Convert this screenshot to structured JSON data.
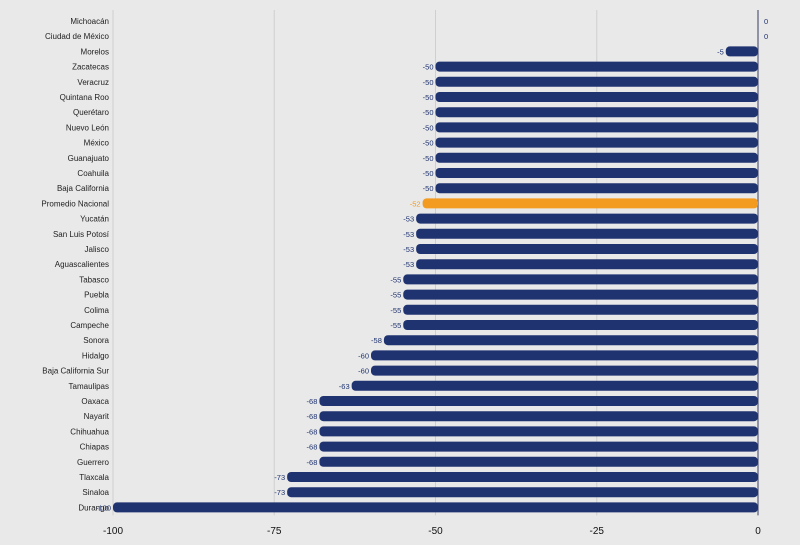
{
  "chart_data": {
    "type": "bar",
    "orientation": "horizontal",
    "title": "",
    "xlabel": "",
    "ylabel": "",
    "xlim": [
      -100,
      0
    ],
    "x_ticks": [
      -100,
      -75,
      -50,
      -25,
      0
    ],
    "x_tick_labels": [
      "-100",
      "-75",
      "-50",
      "-25",
      "0"
    ],
    "grid": "vertical",
    "colors": {
      "bar": "#1f3370",
      "highlight": "#f39a21",
      "background": "#e9e9e9",
      "grid": "#cfcfcf",
      "axis": "#555a7a"
    },
    "categories": [
      "Michoacán",
      "Ciudad de México",
      "Morelos",
      "Zacatecas",
      "Veracruz",
      "Quintana Roo",
      "Querétaro",
      "Nuevo León",
      "México",
      "Guanajuato",
      "Coahuila",
      "Baja California",
      "Promedio Nacional",
      "Yucatán",
      "San Luis Potosí",
      "Jalisco",
      "Aguascalientes",
      "Tabasco",
      "Puebla",
      "Colima",
      "Campeche",
      "Sonora",
      "Hidalgo",
      "Baja California Sur",
      "Tamaulipas",
      "Oaxaca",
      "Nayarit",
      "Chihuahua",
      "Chiapas",
      "Guerrero",
      "Tlaxcala",
      "Sinaloa",
      "Durango"
    ],
    "values": [
      0,
      0,
      -5,
      -50,
      -50,
      -50,
      -50,
      -50,
      -50,
      -50,
      -50,
      -50,
      -52,
      -53,
      -53,
      -53,
      -53,
      -55,
      -55,
      -55,
      -55,
      -58,
      -60,
      -60,
      -63,
      -68,
      -68,
      -68,
      -68,
      -68,
      -73,
      -73,
      -100
    ],
    "highlight_category": "Promedio Nacional"
  }
}
